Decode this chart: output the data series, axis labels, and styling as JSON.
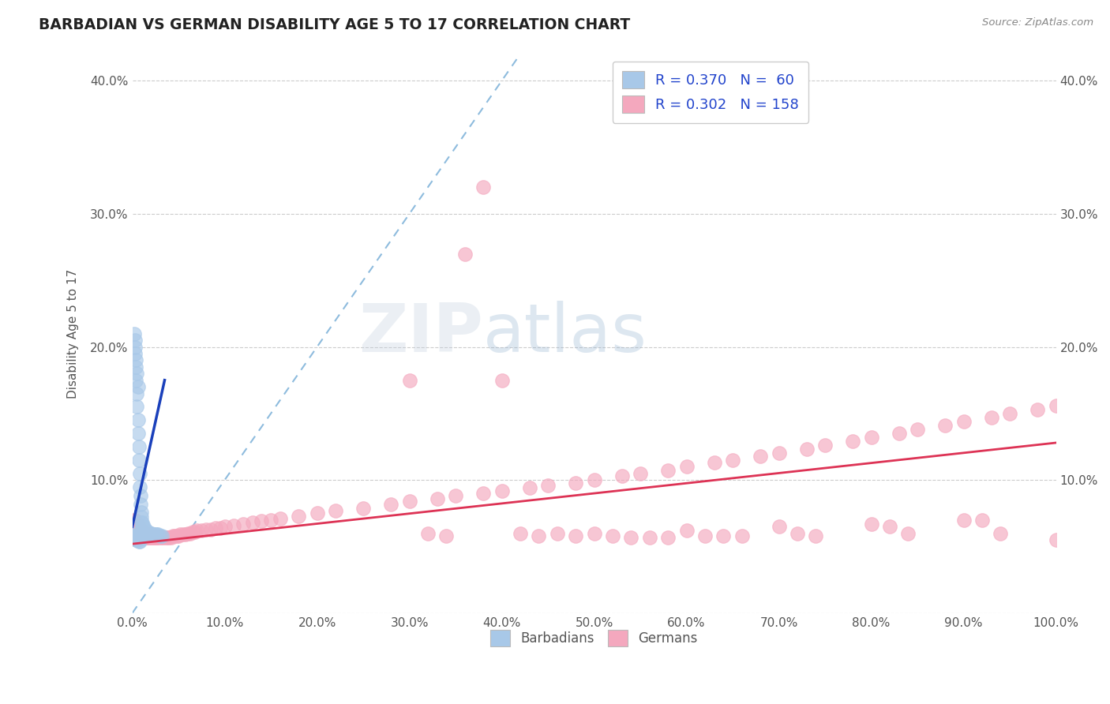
{
  "title": "BARBADIAN VS GERMAN DISABILITY AGE 5 TO 17 CORRELATION CHART",
  "source_text": "Source: ZipAtlas.com",
  "ylabel": "Disability Age 5 to 17",
  "xlim": [
    0.0,
    1.0
  ],
  "ylim": [
    0.0,
    0.42
  ],
  "xticks": [
    0.0,
    0.1,
    0.2,
    0.3,
    0.4,
    0.5,
    0.6,
    0.7,
    0.8,
    0.9,
    1.0
  ],
  "xticklabels": [
    "0.0%",
    "10.0%",
    "20.0%",
    "30.0%",
    "40.0%",
    "50.0%",
    "60.0%",
    "70.0%",
    "80.0%",
    "90.0%",
    "100.0%"
  ],
  "yticks": [
    0.0,
    0.1,
    0.2,
    0.3,
    0.4
  ],
  "yticklabels_left": [
    "",
    "10.0%",
    "20.0%",
    "30.0%",
    "40.0%"
  ],
  "yticklabels_right": [
    "",
    "10.0%",
    "20.0%",
    "30.0%",
    "40.0%"
  ],
  "grid_color": "#cccccc",
  "background_color": "#ffffff",
  "barbadian_dot_color": "#a8c8e8",
  "german_dot_color": "#f4a8be",
  "barbadian_line_color": "#1a40bb",
  "german_line_color": "#dd3355",
  "diagonal_color": "#7ab0d8",
  "R_barbadian": 0.37,
  "N_barbadian": 60,
  "R_german": 0.302,
  "N_german": 158,
  "watermark_zip": "ZIP",
  "watermark_atlas": "atlas",
  "legend_text_color": "#2244cc",
  "tick_color": "#555555",
  "title_color": "#222222",
  "source_color": "#888888",
  "barbadian_x": [
    0.003,
    0.003,
    0.004,
    0.004,
    0.005,
    0.005,
    0.006,
    0.006,
    0.007,
    0.007,
    0.008,
    0.008,
    0.009,
    0.009,
    0.01,
    0.01,
    0.01,
    0.011,
    0.011,
    0.012,
    0.012,
    0.013,
    0.014,
    0.015,
    0.016,
    0.017,
    0.018,
    0.019,
    0.02,
    0.021,
    0.022,
    0.023,
    0.025,
    0.026,
    0.028,
    0.03,
    0.032,
    0.002,
    0.002,
    0.003,
    0.004,
    0.005,
    0.006,
    0.007,
    0.008,
    0.009,
    0.001,
    0.001,
    0.002,
    0.003,
    0.004,
    0.005,
    0.006,
    0.007,
    0.008,
    0.002,
    0.003,
    0.004,
    0.005,
    0.006
  ],
  "barbadian_y": [
    0.205,
    0.195,
    0.185,
    0.175,
    0.165,
    0.155,
    0.145,
    0.135,
    0.125,
    0.115,
    0.105,
    0.095,
    0.088,
    0.082,
    0.076,
    0.072,
    0.068,
    0.068,
    0.065,
    0.065,
    0.063,
    0.063,
    0.062,
    0.062,
    0.061,
    0.061,
    0.06,
    0.06,
    0.06,
    0.06,
    0.059,
    0.059,
    0.059,
    0.059,
    0.059,
    0.058,
    0.058,
    0.06,
    0.058,
    0.058,
    0.058,
    0.057,
    0.057,
    0.057,
    0.057,
    0.057,
    0.058,
    0.057,
    0.056,
    0.056,
    0.055,
    0.055,
    0.055,
    0.054,
    0.054,
    0.21,
    0.2,
    0.19,
    0.18,
    0.17
  ],
  "german_x": [
    0.001,
    0.001,
    0.001,
    0.002,
    0.002,
    0.002,
    0.002,
    0.003,
    0.003,
    0.003,
    0.003,
    0.004,
    0.004,
    0.004,
    0.004,
    0.005,
    0.005,
    0.005,
    0.005,
    0.006,
    0.006,
    0.006,
    0.006,
    0.007,
    0.007,
    0.007,
    0.008,
    0.008,
    0.008,
    0.009,
    0.009,
    0.009,
    0.01,
    0.01,
    0.01,
    0.011,
    0.011,
    0.012,
    0.012,
    0.013,
    0.013,
    0.014,
    0.014,
    0.015,
    0.015,
    0.016,
    0.016,
    0.017,
    0.017,
    0.018,
    0.018,
    0.019,
    0.019,
    0.02,
    0.02,
    0.021,
    0.022,
    0.022,
    0.023,
    0.024,
    0.025,
    0.026,
    0.027,
    0.028,
    0.03,
    0.032,
    0.034,
    0.036,
    0.038,
    0.04,
    0.042,
    0.044,
    0.046,
    0.048,
    0.05,
    0.052,
    0.055,
    0.058,
    0.06,
    0.063,
    0.065,
    0.068,
    0.07,
    0.075,
    0.08,
    0.085,
    0.09,
    0.095,
    0.1,
    0.11,
    0.12,
    0.13,
    0.14,
    0.15,
    0.16,
    0.18,
    0.2,
    0.22,
    0.25,
    0.28,
    0.3,
    0.33,
    0.35,
    0.38,
    0.4,
    0.43,
    0.45,
    0.48,
    0.5,
    0.53,
    0.55,
    0.58,
    0.6,
    0.63,
    0.65,
    0.68,
    0.7,
    0.73,
    0.75,
    0.78,
    0.8,
    0.83,
    0.85,
    0.88,
    0.9,
    0.93,
    0.95,
    0.98,
    1.0,
    0.4,
    0.42,
    0.44,
    0.52,
    0.54,
    0.56,
    0.62,
    0.64,
    0.72,
    0.82,
    0.92,
    0.36,
    0.38,
    0.46,
    0.48,
    0.58,
    0.66,
    0.74,
    0.84,
    0.94,
    0.3,
    0.32,
    0.34,
    0.5,
    0.6,
    0.7,
    0.8,
    0.9,
    1.0
  ],
  "german_y": [
    0.065,
    0.062,
    0.068,
    0.06,
    0.063,
    0.067,
    0.07,
    0.058,
    0.062,
    0.066,
    0.07,
    0.058,
    0.061,
    0.065,
    0.068,
    0.057,
    0.06,
    0.064,
    0.067,
    0.057,
    0.06,
    0.063,
    0.067,
    0.057,
    0.06,
    0.063,
    0.057,
    0.06,
    0.063,
    0.057,
    0.06,
    0.063,
    0.057,
    0.059,
    0.062,
    0.057,
    0.059,
    0.057,
    0.059,
    0.057,
    0.059,
    0.057,
    0.059,
    0.057,
    0.059,
    0.057,
    0.059,
    0.057,
    0.059,
    0.057,
    0.059,
    0.057,
    0.059,
    0.057,
    0.059,
    0.057,
    0.057,
    0.059,
    0.057,
    0.057,
    0.057,
    0.057,
    0.057,
    0.057,
    0.057,
    0.057,
    0.057,
    0.057,
    0.057,
    0.057,
    0.057,
    0.058,
    0.058,
    0.058,
    0.058,
    0.059,
    0.059,
    0.059,
    0.06,
    0.06,
    0.061,
    0.061,
    0.062,
    0.062,
    0.063,
    0.063,
    0.064,
    0.064,
    0.065,
    0.066,
    0.067,
    0.068,
    0.069,
    0.07,
    0.071,
    0.073,
    0.075,
    0.077,
    0.079,
    0.082,
    0.084,
    0.086,
    0.088,
    0.09,
    0.092,
    0.094,
    0.096,
    0.098,
    0.1,
    0.103,
    0.105,
    0.107,
    0.11,
    0.113,
    0.115,
    0.118,
    0.12,
    0.123,
    0.126,
    0.129,
    0.132,
    0.135,
    0.138,
    0.141,
    0.144,
    0.147,
    0.15,
    0.153,
    0.156,
    0.175,
    0.06,
    0.058,
    0.058,
    0.057,
    0.057,
    0.058,
    0.058,
    0.06,
    0.065,
    0.07,
    0.27,
    0.32,
    0.06,
    0.058,
    0.057,
    0.058,
    0.058,
    0.06,
    0.06,
    0.175,
    0.06,
    0.058,
    0.06,
    0.062,
    0.065,
    0.067,
    0.07,
    0.055
  ]
}
